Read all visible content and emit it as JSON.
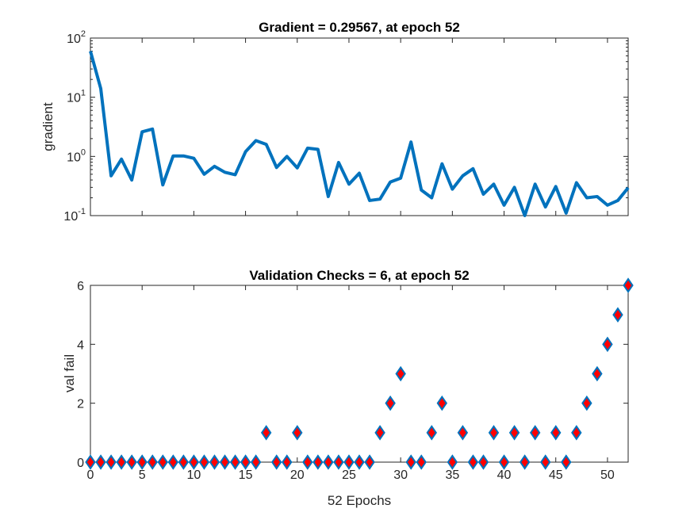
{
  "colors": {
    "background": "#ffffff",
    "axes_edge": "#262626",
    "line": "#0072bd",
    "marker_face": "#ff0000",
    "marker_edge": "#0072bd"
  },
  "chart_data": [
    {
      "type": "line",
      "title": "Gradient = 0.29567, at epoch 52",
      "xlabel": "",
      "ylabel": "gradient",
      "yscale": "log",
      "xlim": [
        0,
        52
      ],
      "ylim": [
        0.1,
        100
      ],
      "ytick_labels": [
        {
          "base": "10",
          "exp": "-1",
          "value": 0.1
        },
        {
          "base": "10",
          "exp": "0",
          "value": 1
        },
        {
          "base": "10",
          "exp": "1",
          "value": 10
        },
        {
          "base": "10",
          "exp": "2",
          "value": 100
        }
      ],
      "show_xtick_labels": false,
      "series": [
        {
          "name": "gradient",
          "x": [
            0,
            1,
            2,
            3,
            4,
            5,
            6,
            7,
            8,
            9,
            10,
            11,
            12,
            13,
            14,
            15,
            16,
            17,
            18,
            19,
            20,
            21,
            22,
            23,
            24,
            25,
            26,
            27,
            28,
            29,
            30,
            31,
            32,
            33,
            34,
            35,
            36,
            37,
            38,
            39,
            40,
            41,
            42,
            43,
            44,
            45,
            46,
            47,
            48,
            49,
            50,
            51,
            52
          ],
          "values": [
            60,
            14,
            0.47,
            0.9,
            0.4,
            2.6,
            2.9,
            0.33,
            1.02,
            1.02,
            0.93,
            0.5,
            0.68,
            0.54,
            0.49,
            1.2,
            1.85,
            1.6,
            0.65,
            1.0,
            0.64,
            1.38,
            1.32,
            0.21,
            0.79,
            0.34,
            0.52,
            0.18,
            0.19,
            0.37,
            0.43,
            1.75,
            0.27,
            0.2,
            0.75,
            0.28,
            0.47,
            0.62,
            0.23,
            0.34,
            0.15,
            0.3,
            0.1,
            0.34,
            0.14,
            0.31,
            0.11,
            0.36,
            0.2,
            0.21,
            0.15,
            0.18,
            0.29567
          ]
        }
      ]
    },
    {
      "type": "scatter",
      "title": "Validation Checks = 6, at epoch 52",
      "xlabel": "52 Epochs",
      "ylabel": "val fail",
      "xlim": [
        0,
        52
      ],
      "ylim": [
        0,
        6
      ],
      "xticks": [
        0,
        5,
        10,
        15,
        20,
        25,
        30,
        35,
        40,
        45,
        50
      ],
      "yticks": [
        0,
        2,
        4,
        6
      ],
      "marker": "diamond",
      "series": [
        {
          "name": "val fail",
          "x": [
            0,
            1,
            2,
            3,
            4,
            5,
            6,
            7,
            8,
            9,
            10,
            11,
            12,
            13,
            14,
            15,
            16,
            17,
            18,
            19,
            20,
            21,
            22,
            23,
            24,
            25,
            26,
            27,
            28,
            29,
            30,
            31,
            32,
            33,
            34,
            35,
            36,
            37,
            38,
            39,
            40,
            41,
            42,
            43,
            44,
            45,
            46,
            47,
            48,
            49,
            50,
            51,
            52
          ],
          "values": [
            0,
            0,
            0,
            0,
            0,
            0,
            0,
            0,
            0,
            0,
            0,
            0,
            0,
            0,
            0,
            0,
            0,
            1,
            0,
            0,
            1,
            0,
            0,
            0,
            0,
            0,
            0,
            0,
            1,
            2,
            3,
            0,
            0,
            1,
            2,
            0,
            1,
            0,
            0,
            1,
            0,
            1,
            0,
            1,
            0,
            1,
            0,
            1,
            2,
            3,
            4,
            5,
            6
          ]
        }
      ]
    }
  ]
}
